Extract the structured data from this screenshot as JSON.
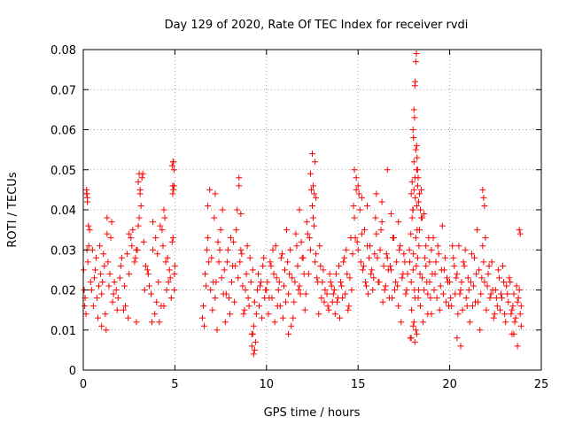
{
  "chart_data": {
    "type": "scatter",
    "title": "Day 129 of 2020, Rate Of TEC Index for receiver rvdi",
    "xlabel": "GPS time / hours",
    "ylabel": "ROTI / TECUs",
    "xlim": [
      0,
      25
    ],
    "ylim": [
      0,
      0.08
    ],
    "xticks": [
      0,
      5,
      10,
      15,
      20,
      25
    ],
    "xtick_labels": [
      "0",
      "5",
      "10",
      "15",
      "20",
      "25"
    ],
    "yticks": [
      0,
      0.01,
      0.02,
      0.03,
      0.04,
      0.05,
      0.06,
      0.07,
      0.08
    ],
    "ytick_labels": [
      "0",
      "0.01",
      "0.02",
      "0.03",
      "0.04",
      "0.05",
      "0.06",
      "0.07",
      "0.08"
    ],
    "grid": true,
    "marker": "plus",
    "color": "#ff0000",
    "series": [
      {
        "x": [
          0.02,
          0.1,
          0.18,
          0.22,
          0.3,
          0.4,
          0.55,
          0.7,
          0.85,
          1.0,
          1.15,
          1.3,
          1.45,
          1.6,
          1.8,
          2.0,
          2.2,
          2.4,
          2.6,
          2.8,
          2.95,
          3.05,
          3.15,
          3.3,
          3.5,
          3.7,
          3.9,
          4.05,
          4.2,
          4.35,
          4.5,
          4.65,
          4.8,
          4.9,
          4.95,
          5.0,
          0.05,
          0.15,
          0.25,
          0.35,
          0.5,
          0.65,
          0.8,
          0.95,
          1.1,
          1.25,
          1.4,
          1.55,
          1.7,
          1.9,
          2.1,
          2.3,
          2.5,
          2.7,
          2.9,
          3.1,
          3.25,
          3.4,
          3.6,
          3.8,
          4.0,
          4.15,
          4.3,
          4.45,
          4.6,
          4.75,
          4.85,
          4.92,
          4.98,
          0.08,
          0.2,
          0.28,
          0.45,
          0.6,
          0.75,
          0.9,
          1.05,
          1.2,
          1.35,
          1.5,
          1.65,
          1.85,
          2.05,
          2.25,
          2.45,
          2.65,
          2.85,
          3.0,
          3.2,
          3.35,
          3.55,
          3.75,
          3.95,
          4.1,
          4.25,
          4.4,
          4.55,
          4.7,
          4.88,
          0.18,
          0.2,
          0.22,
          3.0,
          3.05,
          3.1,
          4.85,
          4.9,
          4.95,
          4.88,
          4.92,
          4.97,
          1.3,
          2.5,
          2.9,
          3.8,
          4.4,
          1.0,
          6.5,
          6.6,
          6.7,
          6.8,
          6.9,
          7.0,
          7.1,
          7.2,
          7.3,
          7.4,
          7.5,
          7.6,
          7.7,
          7.8,
          7.9,
          8.0,
          8.1,
          8.2,
          8.3,
          8.4,
          8.5,
          8.6,
          8.7,
          8.8,
          8.9,
          9.0,
          9.1,
          9.2,
          9.3,
          9.4,
          9.5,
          9.6,
          9.7,
          9.8,
          9.9,
          6.55,
          6.75,
          6.95,
          7.15,
          7.35,
          7.55,
          7.75,
          7.95,
          8.15,
          8.35,
          8.55,
          8.75,
          8.95,
          9.15,
          9.35,
          9.55,
          9.75,
          9.95,
          6.65,
          6.85,
          7.05,
          7.25,
          7.45,
          7.65,
          7.85,
          8.05,
          8.25,
          8.45,
          8.65,
          8.85,
          9.05,
          9.25,
          9.45,
          9.65,
          9.85,
          9.2,
          9.25,
          9.3,
          9.35,
          6.8,
          7.2,
          8.5,
          8.6,
          10.0,
          10.1,
          10.2,
          10.3,
          10.4,
          10.5,
          10.6,
          10.7,
          10.8,
          10.9,
          11.0,
          11.1,
          11.2,
          11.3,
          11.4,
          11.5,
          11.6,
          11.7,
          11.8,
          11.9,
          12.0,
          12.1,
          12.2,
          12.3,
          12.4,
          12.5,
          12.6,
          12.7,
          12.8,
          12.9,
          13.0,
          13.1,
          13.2,
          10.05,
          10.25,
          10.45,
          10.65,
          10.85,
          11.05,
          11.25,
          11.45,
          11.65,
          11.85,
          12.05,
          12.25,
          12.45,
          12.65,
          12.85,
          13.05,
          10.15,
          10.35,
          10.55,
          10.75,
          10.95,
          11.15,
          11.35,
          11.55,
          11.75,
          11.95,
          12.15,
          12.35,
          12.55,
          12.75,
          12.95,
          13.15,
          12.4,
          12.5,
          12.6,
          12.65,
          12.7,
          12.55,
          11.2,
          11.8,
          13.3,
          13.4,
          13.5,
          13.6,
          13.7,
          13.8,
          13.9,
          14.0,
          14.1,
          14.2,
          14.3,
          14.4,
          14.5,
          14.6,
          14.7,
          14.8,
          14.9,
          15.0,
          15.1,
          15.2,
          15.3,
          15.4,
          15.5,
          15.6,
          15.7,
          15.8,
          15.9,
          16.0,
          16.1,
          16.2,
          16.3,
          16.4,
          16.5,
          16.6,
          16.7,
          16.8,
          16.9,
          17.0,
          17.1,
          17.2,
          17.3,
          17.4,
          17.5,
          17.6,
          17.7,
          13.35,
          13.55,
          13.75,
          13.95,
          14.15,
          14.35,
          14.55,
          14.75,
          14.95,
          15.15,
          15.35,
          15.55,
          15.75,
          15.95,
          16.15,
          16.35,
          16.55,
          16.75,
          16.95,
          17.15,
          17.35,
          17.55,
          13.45,
          13.65,
          13.85,
          14.05,
          14.25,
          14.45,
          14.65,
          14.85,
          15.05,
          15.25,
          15.45,
          15.65,
          15.85,
          16.05,
          16.25,
          16.45,
          16.65,
          16.85,
          17.05,
          17.25,
          17.45,
          17.65,
          14.8,
          14.9,
          15.0,
          15.2,
          15.5,
          16.0,
          16.3,
          16.8,
          17.2,
          16.6,
          17.8,
          17.85,
          17.9,
          17.95,
          18.0,
          18.05,
          18.1,
          18.15,
          18.2,
          18.25,
          18.3,
          18.35,
          18.4,
          18.5,
          18.6,
          18.7,
          18.8,
          18.9,
          19.0,
          19.1,
          19.2,
          19.3,
          19.4,
          19.5,
          19.6,
          19.7,
          19.8,
          19.9,
          17.82,
          17.88,
          17.92,
          17.98,
          18.02,
          18.08,
          18.12,
          18.18,
          18.22,
          18.28,
          18.32,
          18.38,
          18.45,
          18.55,
          18.65,
          18.75,
          18.85,
          18.95,
          19.05,
          19.15,
          19.25,
          19.35,
          19.45,
          19.55,
          19.65,
          19.75,
          19.85,
          19.95,
          17.9,
          17.95,
          18.0,
          18.05,
          18.1,
          18.15,
          18.2,
          18.25,
          18.3,
          18.35,
          18.4,
          18.45,
          18.5,
          18.6,
          18.7,
          18.8,
          18.9,
          19.0,
          18.0,
          18.02,
          18.05,
          18.08,
          18.1,
          18.12,
          18.15,
          18.18,
          18.2,
          18.22,
          18.25,
          18.28,
          18.0,
          18.1,
          18.2,
          17.9,
          18.05,
          18.15,
          20.0,
          20.1,
          20.2,
          20.3,
          20.4,
          20.5,
          20.6,
          20.7,
          20.8,
          20.9,
          21.0,
          21.1,
          21.2,
          21.3,
          21.4,
          21.5,
          21.6,
          21.7,
          21.8,
          21.9,
          22.0,
          22.1,
          22.2,
          22.3,
          22.4,
          22.5,
          22.6,
          22.7,
          22.8,
          22.9,
          23.0,
          23.1,
          23.2,
          23.3,
          23.4,
          23.5,
          23.6,
          23.7,
          23.8,
          23.9,
          20.05,
          20.25,
          20.45,
          20.65,
          20.85,
          21.05,
          21.25,
          21.45,
          21.65,
          21.85,
          22.05,
          22.25,
          22.45,
          22.65,
          22.85,
          23.05,
          23.25,
          23.45,
          23.65,
          23.85,
          20.15,
          20.35,
          20.55,
          20.75,
          20.95,
          21.15,
          21.35,
          21.55,
          21.75,
          21.95,
          22.15,
          22.35,
          22.55,
          22.75,
          22.95,
          23.15,
          23.35,
          23.55,
          23.75,
          23.9,
          21.8,
          21.85,
          21.9,
          20.4,
          20.6,
          23.5,
          23.7,
          23.8,
          23.85,
          23.4
        ],
        "y": [
          0.025,
          0.018,
          0.044,
          0.043,
          0.031,
          0.022,
          0.016,
          0.028,
          0.021,
          0.019,
          0.026,
          0.034,
          0.024,
          0.017,
          0.02,
          0.023,
          0.015,
          0.029,
          0.033,
          0.027,
          0.03,
          0.038,
          0.041,
          0.032,
          0.025,
          0.019,
          0.014,
          0.029,
          0.036,
          0.031,
          0.027,
          0.022,
          0.018,
          0.033,
          0.05,
          0.026,
          0.02,
          0.014,
          0.027,
          0.035,
          0.03,
          0.025,
          0.013,
          0.024,
          0.029,
          0.01,
          0.021,
          0.037,
          0.022,
          0.018,
          0.028,
          0.016,
          0.024,
          0.035,
          0.03,
          0.045,
          0.049,
          0.026,
          0.021,
          0.03,
          0.017,
          0.012,
          0.035,
          0.038,
          0.028,
          0.023,
          0.032,
          0.052,
          0.024,
          0.016,
          0.03,
          0.036,
          0.02,
          0.023,
          0.018,
          0.031,
          0.022,
          0.014,
          0.027,
          0.033,
          0.019,
          0.015,
          0.026,
          0.021,
          0.013,
          0.031,
          0.028,
          0.036,
          0.048,
          0.02,
          0.024,
          0.012,
          0.033,
          0.022,
          0.016,
          0.04,
          0.02,
          0.025,
          0.046,
          0.045,
          0.044,
          0.042,
          0.047,
          0.049,
          0.044,
          0.051,
          0.052,
          0.046,
          0.044,
          0.045,
          0.02,
          0.038,
          0.034,
          0.012,
          0.037,
          0.016,
          0.011,
          0.013,
          0.011,
          0.021,
          0.033,
          0.045,
          0.028,
          0.022,
          0.018,
          0.01,
          0.027,
          0.035,
          0.04,
          0.025,
          0.019,
          0.03,
          0.014,
          0.022,
          0.032,
          0.026,
          0.04,
          0.048,
          0.03,
          0.021,
          0.015,
          0.024,
          0.018,
          0.028,
          0.009,
          0.004,
          0.007,
          0.02,
          0.016,
          0.022,
          0.026,
          0.018,
          0.016,
          0.03,
          0.02,
          0.038,
          0.032,
          0.023,
          0.012,
          0.018,
          0.026,
          0.035,
          0.027,
          0.014,
          0.031,
          0.022,
          0.017,
          0.024,
          0.013,
          0.02,
          0.024,
          0.027,
          0.015,
          0.022,
          0.03,
          0.019,
          0.027,
          0.033,
          0.017,
          0.023,
          0.029,
          0.02,
          0.016,
          0.025,
          0.014,
          0.021,
          0.028,
          0.006,
          0.009,
          0.011,
          0.005,
          0.041,
          0.044,
          0.046,
          0.039,
          0.02,
          0.014,
          0.027,
          0.018,
          0.024,
          0.031,
          0.016,
          0.022,
          0.028,
          0.013,
          0.025,
          0.035,
          0.019,
          0.03,
          0.023,
          0.017,
          0.034,
          0.026,
          0.021,
          0.032,
          0.028,
          0.015,
          0.037,
          0.024,
          0.03,
          0.041,
          0.036,
          0.029,
          0.022,
          0.031,
          0.018,
          0.025,
          0.02,
          0.022,
          0.026,
          0.012,
          0.02,
          0.029,
          0.017,
          0.024,
          0.013,
          0.031,
          0.019,
          0.024,
          0.034,
          0.045,
          0.027,
          0.014,
          0.022,
          0.018,
          0.03,
          0.023,
          0.016,
          0.021,
          0.027,
          0.011,
          0.022,
          0.02,
          0.028,
          0.019,
          0.033,
          0.038,
          0.023,
          0.026,
          0.017,
          0.049,
          0.054,
          0.044,
          0.052,
          0.043,
          0.046,
          0.009,
          0.04,
          0.019,
          0.015,
          0.022,
          0.017,
          0.02,
          0.024,
          0.018,
          0.013,
          0.021,
          0.027,
          0.019,
          0.024,
          0.016,
          0.033,
          0.029,
          0.038,
          0.045,
          0.03,
          0.04,
          0.034,
          0.026,
          0.022,
          0.031,
          0.028,
          0.024,
          0.02,
          0.029,
          0.034,
          0.022,
          0.03,
          0.037,
          0.026,
          0.021,
          0.028,
          0.018,
          0.025,
          0.033,
          0.02,
          0.027,
          0.016,
          0.031,
          0.023,
          0.029,
          0.019,
          0.024,
          0.016,
          0.021,
          0.014,
          0.026,
          0.018,
          0.03,
          0.023,
          0.041,
          0.032,
          0.027,
          0.035,
          0.019,
          0.025,
          0.038,
          0.022,
          0.017,
          0.029,
          0.026,
          0.033,
          0.021,
          0.012,
          0.027,
          0.024,
          0.019,
          0.017,
          0.022,
          0.028,
          0.015,
          0.02,
          0.033,
          0.044,
          0.025,
          0.021,
          0.031,
          0.023,
          0.028,
          0.035,
          0.02,
          0.025,
          0.018,
          0.022,
          0.03,
          0.024,
          0.02,
          0.05,
          0.048,
          0.046,
          0.043,
          0.041,
          0.044,
          0.042,
          0.039,
          0.037,
          0.05,
          0.03,
          0.008,
          0.022,
          0.038,
          0.025,
          0.045,
          0.018,
          0.033,
          0.041,
          0.028,
          0.02,
          0.035,
          0.016,
          0.023,
          0.039,
          0.031,
          0.019,
          0.027,
          0.014,
          0.033,
          0.024,
          0.018,
          0.029,
          0.021,
          0.036,
          0.025,
          0.017,
          0.022,
          0.027,
          0.034,
          0.015,
          0.04,
          0.029,
          0.02,
          0.043,
          0.026,
          0.035,
          0.018,
          0.031,
          0.024,
          0.038,
          0.012,
          0.028,
          0.022,
          0.033,
          0.018,
          0.024,
          0.02,
          0.027,
          0.031,
          0.015,
          0.025,
          0.019,
          0.028,
          0.023,
          0.016,
          0.044,
          0.047,
          0.04,
          0.052,
          0.048,
          0.055,
          0.05,
          0.046,
          0.042,
          0.044,
          0.04,
          0.045,
          0.038,
          0.02,
          0.026,
          0.014,
          0.022,
          0.03,
          0.06,
          0.058,
          0.065,
          0.063,
          0.071,
          0.072,
          0.077,
          0.079,
          0.056,
          0.053,
          0.05,
          0.048,
          0.011,
          0.007,
          0.009,
          0.008,
          0.012,
          0.01,
          0.022,
          0.016,
          0.028,
          0.019,
          0.024,
          0.031,
          0.02,
          0.015,
          0.026,
          0.018,
          0.023,
          0.012,
          0.029,
          0.021,
          0.017,
          0.035,
          0.025,
          0.019,
          0.031,
          0.022,
          0.015,
          0.024,
          0.018,
          0.027,
          0.013,
          0.02,
          0.016,
          0.023,
          0.019,
          0.026,
          0.014,
          0.021,
          0.017,
          0.022,
          0.015,
          0.019,
          0.013,
          0.017,
          0.02,
          0.016,
          0.018,
          0.026,
          0.014,
          0.022,
          0.03,
          0.02,
          0.016,
          0.024,
          0.01,
          0.027,
          0.021,
          0.019,
          0.014,
          0.025,
          0.018,
          0.012,
          0.023,
          0.016,
          0.021,
          0.014,
          0.031,
          0.023,
          0.019,
          0.027,
          0.016,
          0.022,
          0.028,
          0.017,
          0.023,
          0.033,
          0.026,
          0.02,
          0.018,
          0.015,
          0.022,
          0.019,
          0.014,
          0.012,
          0.018,
          0.011,
          0.045,
          0.043,
          0.041,
          0.008,
          0.006,
          0.009,
          0.006,
          0.035,
          0.034,
          0.009
        ]
      }
    ]
  }
}
